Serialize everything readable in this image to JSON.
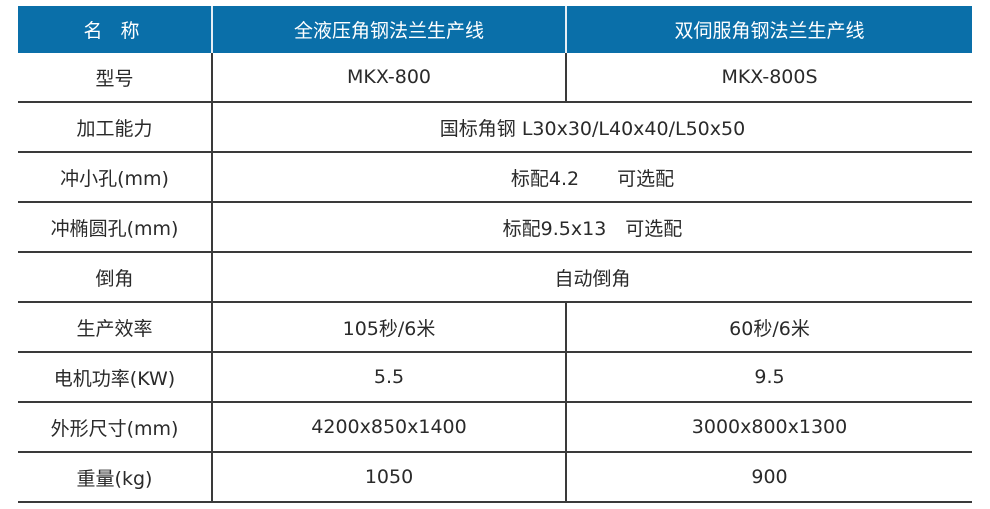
{
  "header": {
    "name": "名 称",
    "col1": "全液压角钢法兰生产线",
    "col2": "双伺服角钢法兰生产线"
  },
  "header_color": "#0a6fa9",
  "rows": [
    {
      "label": "型号",
      "a": "MKX-800",
      "b": "MKX-800S"
    },
    {
      "label": "加工能力",
      "merged": "国标角钢 L30x30/L40x40/L50x50"
    },
    {
      "label": "冲小孔(mm)",
      "merged": "标配4.2　　可选配"
    },
    {
      "label": "冲椭圆孔(mm)",
      "merged": "标配9.5x13　可选配"
    },
    {
      "label": "倒角",
      "merged": "自动倒角"
    },
    {
      "label": "生产效率",
      "a": "105秒/6米",
      "b": "60秒/6米"
    },
    {
      "label": "电机功率(KW)",
      "a": "5.5",
      "b": "9.5"
    },
    {
      "label": "外形尺寸(mm)",
      "a": "4200x850x1400",
      "b": "3000x800x1300"
    },
    {
      "label": "重量(kg)",
      "a": "1050",
      "b": "900"
    }
  ]
}
